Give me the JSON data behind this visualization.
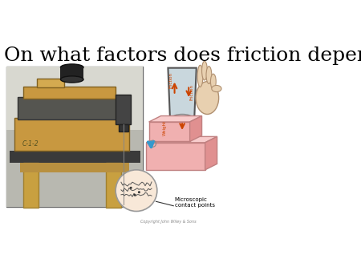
{
  "title": "On what factors does friction depend?",
  "title_fontsize": 18,
  "background_color": "#ffffff",
  "copyright_text": "Copyright John Wiley & Sons",
  "label_friction": "Friction",
  "label_weight": "Weight",
  "label_microscopic": "Microscopic\ncontact points",
  "arrow_color": "#cc4400",
  "blue_arrow_color": "#3399cc",
  "block_color": "#f0b0b0",
  "block_top_color": "#f8cccc",
  "block_side_color": "#e09090",
  "block_edge_color": "#c08080",
  "glass_fill_color": "#c0d0d8",
  "glass_edge_color": "#555555",
  "hand_color": "#e8d0b0",
  "photo_bg": "#c8c8bc",
  "table_color": "#444444",
  "wood_color": "#c8a040",
  "board_dark": "#888878",
  "photo_border": "#666666",
  "contact_circle_color": "#f8e8d8",
  "contact_circle_edge": "#999999"
}
